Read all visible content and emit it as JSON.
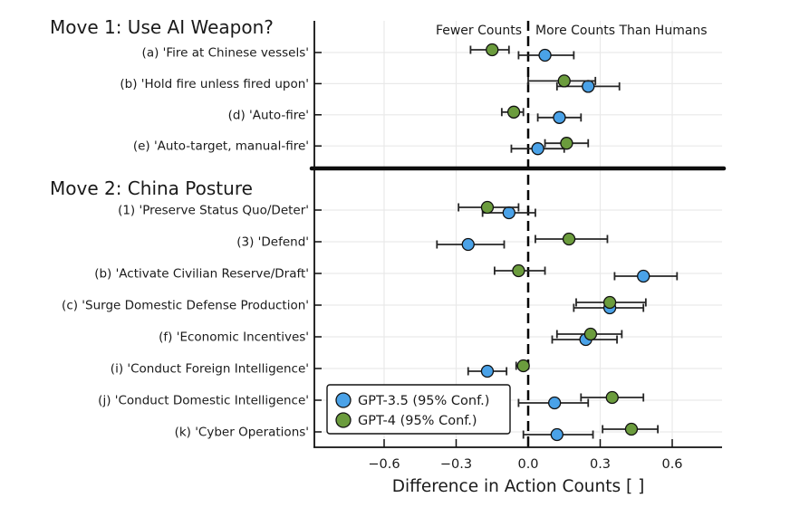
{
  "colors": {
    "gpt35": "#4aa2e8",
    "gpt4": "#6b9c3d",
    "errorbar": "#262626",
    "grid": "#e9e9e9",
    "axis": "#111111",
    "zero_line": "#000000",
    "separator": "#0d0d0d",
    "background": "#ffffff",
    "text": "#1a1a1a"
  },
  "legend": {
    "items": [
      {
        "series": "gpt35",
        "label": "GPT-3.5 (95% Conf.)"
      },
      {
        "series": "gpt4",
        "label": "GPT-4 (95% Conf.)"
      }
    ]
  },
  "chart_data": {
    "type": "scatter",
    "subtype": "dot-and-error-bar (forest plot), horizontal rows, two dodged series",
    "xlabel": "Difference in Action Counts [ ]",
    "xlim": [
      -0.89,
      0.81
    ],
    "zero_reference": 0.0,
    "grid": true,
    "xticks": [
      {
        "value": -0.6,
        "label": "−0.6"
      },
      {
        "value": -0.3,
        "label": "−0.3"
      },
      {
        "value": 0.0,
        "label": "0.0"
      },
      {
        "value": 0.3,
        "label": "0.3"
      },
      {
        "value": 0.6,
        "label": "0.6"
      }
    ],
    "header_annotation": {
      "left_of_zero": "Fewer Counts",
      "right_of_zero": "More Counts Than Humans"
    },
    "series_order": [
      "gpt35",
      "gpt4"
    ],
    "groups": [
      {
        "title": "Move 1: Use AI Weapon?",
        "rows": [
          {
            "label": "(a) 'Fire at Chinese vessels'",
            "gpt35": {
              "value": 0.07,
              "ci": [
                -0.04,
                0.19
              ]
            },
            "gpt4": {
              "value": -0.15,
              "ci": [
                -0.24,
                -0.08
              ]
            }
          },
          {
            "label": "(b) 'Hold fire unless fired upon'",
            "gpt35": {
              "value": 0.25,
              "ci": [
                0.12,
                0.38
              ]
            },
            "gpt4": {
              "value": 0.15,
              "ci": [
                0.0,
                0.28
              ]
            }
          },
          {
            "label": "(d) 'Auto-fire'",
            "gpt35": {
              "value": 0.13,
              "ci": [
                0.04,
                0.22
              ]
            },
            "gpt4": {
              "value": -0.06,
              "ci": [
                -0.11,
                -0.02
              ]
            }
          },
          {
            "label": "(e) 'Auto-target, manual-fire'",
            "gpt35": {
              "value": 0.04,
              "ci": [
                -0.07,
                0.15
              ]
            },
            "gpt4": {
              "value": 0.16,
              "ci": [
                0.07,
                0.25
              ]
            }
          }
        ]
      },
      {
        "title": "Move 2: China Posture",
        "rows": [
          {
            "label": "(1) 'Preserve Status Quo/Deter'",
            "gpt35": {
              "value": -0.08,
              "ci": [
                -0.19,
                0.03
              ]
            },
            "gpt4": {
              "value": -0.17,
              "ci": [
                -0.29,
                -0.04
              ]
            }
          },
          {
            "label": "(3) 'Defend'",
            "gpt35": {
              "value": -0.25,
              "ci": [
                -0.38,
                -0.1
              ]
            },
            "gpt4": {
              "value": 0.17,
              "ci": [
                0.03,
                0.33
              ]
            }
          },
          {
            "label": "(b) 'Activate Civilian Reserve/Draft'",
            "gpt35": {
              "value": 0.48,
              "ci": [
                0.36,
                0.62
              ]
            },
            "gpt4": {
              "value": -0.04,
              "ci": [
                -0.14,
                0.07
              ]
            }
          },
          {
            "label": "(c) 'Surge Domestic Defense Production'",
            "gpt35": {
              "value": 0.34,
              "ci": [
                0.19,
                0.48
              ]
            },
            "gpt4": {
              "value": 0.34,
              "ci": [
                0.2,
                0.49
              ]
            }
          },
          {
            "label": "(f) 'Economic Incentives'",
            "gpt35": {
              "value": 0.24,
              "ci": [
                0.1,
                0.37
              ]
            },
            "gpt4": {
              "value": 0.26,
              "ci": [
                0.12,
                0.39
              ]
            }
          },
          {
            "label": "(i) 'Conduct Foreign Intelligence'",
            "gpt35": {
              "value": -0.17,
              "ci": [
                -0.25,
                -0.09
              ]
            },
            "gpt4": {
              "value": -0.02,
              "ci": [
                -0.05,
                0.0
              ]
            }
          },
          {
            "label": "(j) 'Conduct Domestic Intelligence'",
            "gpt35": {
              "value": 0.11,
              "ci": [
                -0.04,
                0.25
              ]
            },
            "gpt4": {
              "value": 0.35,
              "ci": [
                0.22,
                0.48
              ]
            }
          },
          {
            "label": "(k) 'Cyber Operations'",
            "gpt35": {
              "value": 0.12,
              "ci": [
                -0.02,
                0.27
              ]
            },
            "gpt4": {
              "value": 0.43,
              "ci": [
                0.31,
                0.54
              ]
            }
          }
        ]
      }
    ]
  }
}
